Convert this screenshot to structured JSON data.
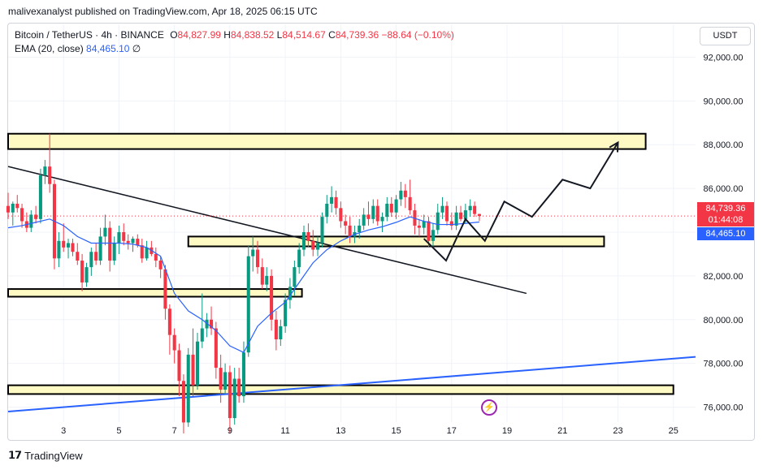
{
  "header": {
    "publisher_line": "malivexanalyst published on TradingView.com, Apr 18, 2025 06:15 UTC"
  },
  "legend": {
    "symbol": "Bitcoin / TetherUS · 4h · BINANCE",
    "open_label": "O",
    "open": "84,827.99",
    "high_label": "H",
    "high": "84,838.52",
    "low_label": "L",
    "low": "84,514.67",
    "close_label": "C",
    "close": "84,739.36",
    "change": "−88.64 (−0.10%)",
    "ema_label": "EMA (20, close)",
    "ema_value": "84,465.10",
    "ema_extra": "∅"
  },
  "price_scale": {
    "currency": "USDT",
    "last_price": "84,739.36",
    "countdown": "01:44:08",
    "ema_price": "84,465.10"
  },
  "colors": {
    "up": "#089981",
    "down": "#f23645",
    "ema": "#2962ff",
    "zone_fill": "#fff9c4",
    "zone_border": "#000000",
    "trendline_black": "#131722",
    "trendline_blue": "#2962ff"
  },
  "footer": {
    "brand": "TradingView"
  },
  "chart_data": {
    "type": "candlestick",
    "symbol": "BTCUSDT",
    "timeframe": "4h",
    "y_axis": {
      "min": 74500,
      "max": 93500,
      "ticks": [
        92000,
        90000,
        88000,
        86000,
        84000,
        82000,
        80000,
        78000,
        76000
      ],
      "tick_labels": [
        "92,000.00",
        "90,000.00",
        "88,000.00",
        "86,000.00",
        "84,000.00",
        "82,000.00",
        "80,000.00",
        "78,000.00",
        "76,000.00"
      ]
    },
    "x_axis": {
      "min": 1.0,
      "max": 25.8,
      "ticks": [
        3,
        5,
        7,
        9,
        11,
        13,
        15,
        17,
        19,
        21,
        23,
        25
      ],
      "tick_labels": [
        "3",
        "5",
        "7",
        "9",
        "11",
        "13",
        "15",
        "17",
        "19",
        "21",
        "23",
        "25"
      ],
      "unit": "day of April 2025"
    },
    "candles": [
      {
        "x": 1.0,
        "o": 85200,
        "h": 85800,
        "l": 84600,
        "c": 84900
      },
      {
        "x": 1.17,
        "o": 84900,
        "h": 85400,
        "l": 84300,
        "c": 85300
      },
      {
        "x": 1.33,
        "o": 85300,
        "h": 85700,
        "l": 84900,
        "c": 85100
      },
      {
        "x": 1.5,
        "o": 85100,
        "h": 85300,
        "l": 84200,
        "c": 84500
      },
      {
        "x": 1.67,
        "o": 84500,
        "h": 84900,
        "l": 84000,
        "c": 84200
      },
      {
        "x": 1.83,
        "o": 84200,
        "h": 85000,
        "l": 84000,
        "c": 84800
      },
      {
        "x": 2.0,
        "o": 84800,
        "h": 85200,
        "l": 84400,
        "c": 84600
      },
      {
        "x": 2.17,
        "o": 84600,
        "h": 86900,
        "l": 84400,
        "c": 86600
      },
      {
        "x": 2.33,
        "o": 86600,
        "h": 87300,
        "l": 86200,
        "c": 87000
      },
      {
        "x": 2.5,
        "o": 87000,
        "h": 88500,
        "l": 85800,
        "c": 86200
      },
      {
        "x": 2.67,
        "o": 86200,
        "h": 86400,
        "l": 82300,
        "c": 82800
      },
      {
        "x": 2.83,
        "o": 82800,
        "h": 84000,
        "l": 82400,
        "c": 83600
      },
      {
        "x": 3.0,
        "o": 83600,
        "h": 84400,
        "l": 83100,
        "c": 83300
      },
      {
        "x": 3.17,
        "o": 83300,
        "h": 83700,
        "l": 82800,
        "c": 83500
      },
      {
        "x": 3.33,
        "o": 83500,
        "h": 83700,
        "l": 82900,
        "c": 83100
      },
      {
        "x": 3.5,
        "o": 83100,
        "h": 83500,
        "l": 82500,
        "c": 82700
      },
      {
        "x": 3.67,
        "o": 82700,
        "h": 83000,
        "l": 81300,
        "c": 81700
      },
      {
        "x": 3.83,
        "o": 81700,
        "h": 82600,
        "l": 81500,
        "c": 82400
      },
      {
        "x": 4.0,
        "o": 82400,
        "h": 83300,
        "l": 82000,
        "c": 83100
      },
      {
        "x": 4.17,
        "o": 83100,
        "h": 83500,
        "l": 82500,
        "c": 82700
      },
      {
        "x": 4.33,
        "o": 82700,
        "h": 84200,
        "l": 82500,
        "c": 83800
      },
      {
        "x": 4.5,
        "o": 83800,
        "h": 84800,
        "l": 83400,
        "c": 84200
      },
      {
        "x": 4.67,
        "o": 84200,
        "h": 84500,
        "l": 82200,
        "c": 82700
      },
      {
        "x": 4.83,
        "o": 82700,
        "h": 83800,
        "l": 82500,
        "c": 83500
      },
      {
        "x": 5.0,
        "o": 83500,
        "h": 84300,
        "l": 83000,
        "c": 84000
      },
      {
        "x": 5.17,
        "o": 84000,
        "h": 84400,
        "l": 83400,
        "c": 83600
      },
      {
        "x": 5.33,
        "o": 83600,
        "h": 83900,
        "l": 83200,
        "c": 83500
      },
      {
        "x": 5.5,
        "o": 83500,
        "h": 83800,
        "l": 83100,
        "c": 83700
      },
      {
        "x": 5.67,
        "o": 83700,
        "h": 83900,
        "l": 83300,
        "c": 83400
      },
      {
        "x": 5.83,
        "o": 83400,
        "h": 83700,
        "l": 82600,
        "c": 82800
      },
      {
        "x": 6.0,
        "o": 82800,
        "h": 83600,
        "l": 82700,
        "c": 83300
      },
      {
        "x": 6.17,
        "o": 83300,
        "h": 83600,
        "l": 82900,
        "c": 83000
      },
      {
        "x": 6.33,
        "o": 83000,
        "h": 83300,
        "l": 82400,
        "c": 82700
      },
      {
        "x": 6.5,
        "o": 82700,
        "h": 82900,
        "l": 81900,
        "c": 82300
      },
      {
        "x": 6.67,
        "o": 82300,
        "h": 82500,
        "l": 80000,
        "c": 80500
      },
      {
        "x": 6.83,
        "o": 80500,
        "h": 80700,
        "l": 78400,
        "c": 79300
      },
      {
        "x": 7.0,
        "o": 79300,
        "h": 79600,
        "l": 78000,
        "c": 78600
      },
      {
        "x": 7.17,
        "o": 78600,
        "h": 78900,
        "l": 76500,
        "c": 77200
      },
      {
        "x": 7.33,
        "o": 77200,
        "h": 77500,
        "l": 74800,
        "c": 75300
      },
      {
        "x": 7.5,
        "o": 75300,
        "h": 78700,
        "l": 75100,
        "c": 78400
      },
      {
        "x": 7.67,
        "o": 78400,
        "h": 79600,
        "l": 76500,
        "c": 77000
      },
      {
        "x": 7.83,
        "o": 77000,
        "h": 79400,
        "l": 76800,
        "c": 79000
      },
      {
        "x": 8.0,
        "o": 79000,
        "h": 81200,
        "l": 78700,
        "c": 79600
      },
      {
        "x": 8.17,
        "o": 79600,
        "h": 80300,
        "l": 79200,
        "c": 80000
      },
      {
        "x": 8.33,
        "o": 80000,
        "h": 80600,
        "l": 79300,
        "c": 79600
      },
      {
        "x": 8.5,
        "o": 79600,
        "h": 79900,
        "l": 77300,
        "c": 77800
      },
      {
        "x": 8.67,
        "o": 77800,
        "h": 78400,
        "l": 76200,
        "c": 76800
      },
      {
        "x": 8.83,
        "o": 76800,
        "h": 78000,
        "l": 76600,
        "c": 77600
      },
      {
        "x": 9.0,
        "o": 77600,
        "h": 77900,
        "l": 74800,
        "c": 75500
      },
      {
        "x": 9.17,
        "o": 75500,
        "h": 77800,
        "l": 75200,
        "c": 77300
      },
      {
        "x": 9.33,
        "o": 77300,
        "h": 77800,
        "l": 76200,
        "c": 76500
      },
      {
        "x": 9.5,
        "o": 76500,
        "h": 79000,
        "l": 76200,
        "c": 78500
      },
      {
        "x": 9.67,
        "o": 78500,
        "h": 83400,
        "l": 78300,
        "c": 82900
      },
      {
        "x": 9.83,
        "o": 82900,
        "h": 83800,
        "l": 82200,
        "c": 83200
      },
      {
        "x": 10.0,
        "o": 83200,
        "h": 83600,
        "l": 82100,
        "c": 82400
      },
      {
        "x": 10.17,
        "o": 82400,
        "h": 82800,
        "l": 81400,
        "c": 81600
      },
      {
        "x": 10.33,
        "o": 81600,
        "h": 82400,
        "l": 81300,
        "c": 82000
      },
      {
        "x": 10.5,
        "o": 82000,
        "h": 82300,
        "l": 79500,
        "c": 80000
      },
      {
        "x": 10.67,
        "o": 80000,
        "h": 80400,
        "l": 78600,
        "c": 79100
      },
      {
        "x": 10.83,
        "o": 79100,
        "h": 80000,
        "l": 78800,
        "c": 79700
      },
      {
        "x": 11.0,
        "o": 79700,
        "h": 81200,
        "l": 79400,
        "c": 80900
      },
      {
        "x": 11.17,
        "o": 80900,
        "h": 81900,
        "l": 80500,
        "c": 81500
      },
      {
        "x": 11.33,
        "o": 81500,
        "h": 82700,
        "l": 81100,
        "c": 82400
      },
      {
        "x": 11.5,
        "o": 82400,
        "h": 83500,
        "l": 82100,
        "c": 83200
      },
      {
        "x": 11.67,
        "o": 83200,
        "h": 84300,
        "l": 82900,
        "c": 84000
      },
      {
        "x": 11.83,
        "o": 84000,
        "h": 84400,
        "l": 83300,
        "c": 83600
      },
      {
        "x": 12.0,
        "o": 83600,
        "h": 84100,
        "l": 82900,
        "c": 83200
      },
      {
        "x": 12.17,
        "o": 83200,
        "h": 83800,
        "l": 82900,
        "c": 83500
      },
      {
        "x": 12.33,
        "o": 83500,
        "h": 84900,
        "l": 83300,
        "c": 84700
      },
      {
        "x": 12.5,
        "o": 84700,
        "h": 85700,
        "l": 84400,
        "c": 85300
      },
      {
        "x": 12.67,
        "o": 85300,
        "h": 86100,
        "l": 84900,
        "c": 85600
      },
      {
        "x": 12.83,
        "o": 85600,
        "h": 85900,
        "l": 84800,
        "c": 85100
      },
      {
        "x": 13.0,
        "o": 85100,
        "h": 85400,
        "l": 84200,
        "c": 84500
      },
      {
        "x": 13.17,
        "o": 84500,
        "h": 84800,
        "l": 83900,
        "c": 84300
      },
      {
        "x": 13.33,
        "o": 84300,
        "h": 84700,
        "l": 83500,
        "c": 83800
      },
      {
        "x": 13.5,
        "o": 83800,
        "h": 84300,
        "l": 83500,
        "c": 84000
      },
      {
        "x": 13.67,
        "o": 84000,
        "h": 84600,
        "l": 83700,
        "c": 84300
      },
      {
        "x": 13.83,
        "o": 84300,
        "h": 85100,
        "l": 84100,
        "c": 84800
      },
      {
        "x": 14.0,
        "o": 84800,
        "h": 85400,
        "l": 84300,
        "c": 84600
      },
      {
        "x": 14.17,
        "o": 84600,
        "h": 85500,
        "l": 84400,
        "c": 85200
      },
      {
        "x": 14.33,
        "o": 85200,
        "h": 85500,
        "l": 84300,
        "c": 84500
      },
      {
        "x": 14.5,
        "o": 84500,
        "h": 84900,
        "l": 84000,
        "c": 84700
      },
      {
        "x": 14.67,
        "o": 84700,
        "h": 85600,
        "l": 84500,
        "c": 85300
      },
      {
        "x": 14.83,
        "o": 85300,
        "h": 85600,
        "l": 84700,
        "c": 84900
      },
      {
        "x": 15.0,
        "o": 84900,
        "h": 85700,
        "l": 84600,
        "c": 85500
      },
      {
        "x": 15.17,
        "o": 85500,
        "h": 86300,
        "l": 85200,
        "c": 85900
      },
      {
        "x": 15.33,
        "o": 85900,
        "h": 86200,
        "l": 85100,
        "c": 85600
      },
      {
        "x": 15.5,
        "o": 85600,
        "h": 86400,
        "l": 84800,
        "c": 85000
      },
      {
        "x": 15.67,
        "o": 85000,
        "h": 85300,
        "l": 83900,
        "c": 84300
      },
      {
        "x": 15.83,
        "o": 84300,
        "h": 84600,
        "l": 83800,
        "c": 84200
      },
      {
        "x": 16.0,
        "o": 84200,
        "h": 84800,
        "l": 83900,
        "c": 84500
      },
      {
        "x": 16.17,
        "o": 84500,
        "h": 84700,
        "l": 83300,
        "c": 83600
      },
      {
        "x": 16.33,
        "o": 83600,
        "h": 84400,
        "l": 83300,
        "c": 84100
      },
      {
        "x": 16.5,
        "o": 84100,
        "h": 85300,
        "l": 83900,
        "c": 84900
      },
      {
        "x": 16.67,
        "o": 84900,
        "h": 85600,
        "l": 84600,
        "c": 85200
      },
      {
        "x": 16.83,
        "o": 85200,
        "h": 85400,
        "l": 84300,
        "c": 84500
      },
      {
        "x": 17.0,
        "o": 84500,
        "h": 84900,
        "l": 84100,
        "c": 84300
      },
      {
        "x": 17.17,
        "o": 84300,
        "h": 85200,
        "l": 84100,
        "c": 84900
      },
      {
        "x": 17.33,
        "o": 84900,
        "h": 85200,
        "l": 84500,
        "c": 84600
      },
      {
        "x": 17.5,
        "o": 84600,
        "h": 85300,
        "l": 84400,
        "c": 85000
      },
      {
        "x": 17.67,
        "o": 85000,
        "h": 85500,
        "l": 84700,
        "c": 85200
      },
      {
        "x": 17.83,
        "o": 85200,
        "h": 85400,
        "l": 84700,
        "c": 84830
      },
      {
        "x": 18.0,
        "o": 84830,
        "h": 84840,
        "l": 84510,
        "c": 84740
      }
    ],
    "ema": {
      "name": "EMA (20, close)",
      "points": [
        {
          "x": 1.0,
          "y": 84200
        },
        {
          "x": 1.5,
          "y": 84300
        },
        {
          "x": 2.0,
          "y": 84450
        },
        {
          "x": 2.5,
          "y": 84600
        },
        {
          "x": 3.0,
          "y": 84300
        },
        {
          "x": 3.5,
          "y": 83800
        },
        {
          "x": 4.0,
          "y": 83500
        },
        {
          "x": 4.5,
          "y": 83500
        },
        {
          "x": 5.0,
          "y": 83500
        },
        {
          "x": 5.5,
          "y": 83450
        },
        {
          "x": 6.0,
          "y": 83300
        },
        {
          "x": 6.5,
          "y": 82900
        },
        {
          "x": 7.0,
          "y": 81200
        },
        {
          "x": 7.5,
          "y": 80400
        },
        {
          "x": 8.0,
          "y": 80000
        },
        {
          "x": 8.5,
          "y": 79500
        },
        {
          "x": 9.0,
          "y": 78800
        },
        {
          "x": 9.5,
          "y": 78500
        },
        {
          "x": 10.0,
          "y": 79700
        },
        {
          "x": 10.5,
          "y": 80300
        },
        {
          "x": 11.0,
          "y": 80800
        },
        {
          "x": 11.5,
          "y": 81700
        },
        {
          "x": 12.0,
          "y": 82600
        },
        {
          "x": 12.5,
          "y": 83200
        },
        {
          "x": 13.0,
          "y": 83600
        },
        {
          "x": 13.5,
          "y": 83900
        },
        {
          "x": 14.0,
          "y": 84100
        },
        {
          "x": 14.5,
          "y": 84250
        },
        {
          "x": 15.0,
          "y": 84450
        },
        {
          "x": 15.5,
          "y": 84700
        },
        {
          "x": 16.0,
          "y": 84500
        },
        {
          "x": 16.5,
          "y": 84350
        },
        {
          "x": 17.0,
          "y": 84350
        },
        {
          "x": 17.5,
          "y": 84400
        },
        {
          "x": 18.0,
          "y": 84465
        }
      ]
    },
    "zones": [
      {
        "x1": 1.0,
        "x2": 24.0,
        "y_top": 88500,
        "y_bottom": 87800
      },
      {
        "x1": 7.5,
        "x2": 22.5,
        "y_top": 83800,
        "y_bottom": 83350
      },
      {
        "x1": 1.0,
        "x2": 11.6,
        "y_top": 81400,
        "y_bottom": 81050
      },
      {
        "x1": 1.0,
        "x2": 25.0,
        "y_top": 77000,
        "y_bottom": 76600
      }
    ],
    "trendlines": [
      {
        "color": "black",
        "points": [
          {
            "x": 1.0,
            "y": 87000
          },
          {
            "x": 19.7,
            "y": 81200
          }
        ]
      },
      {
        "color": "blue",
        "points": [
          {
            "x": 1.0,
            "y": 75800
          },
          {
            "x": 25.8,
            "y": 78300
          }
        ]
      }
    ],
    "projection": {
      "type": "path_with_arrow",
      "points": [
        {
          "x": 16.0,
          "y": 83700
        },
        {
          "x": 16.8,
          "y": 82700
        },
        {
          "x": 17.5,
          "y": 84600
        },
        {
          "x": 18.2,
          "y": 83600
        },
        {
          "x": 18.9,
          "y": 85400
        },
        {
          "x": 19.9,
          "y": 84700
        },
        {
          "x": 21.0,
          "y": 86400
        },
        {
          "x": 22.0,
          "y": 86000
        },
        {
          "x": 23.0,
          "y": 88100
        }
      ]
    },
    "last_price_line": 84739.36
  }
}
